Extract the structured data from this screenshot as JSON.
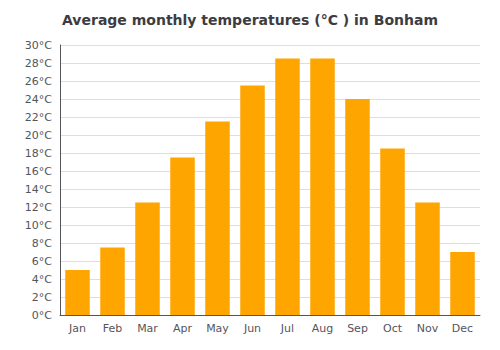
{
  "chart_data": {
    "type": "bar",
    "title": "Average monthly temperatures (°C ) in Bonham",
    "categories": [
      "Jan",
      "Feb",
      "Mar",
      "Apr",
      "May",
      "Jun",
      "Jul",
      "Aug",
      "Sep",
      "Oct",
      "Nov",
      "Dec"
    ],
    "values": [
      5,
      7.5,
      12.5,
      17.5,
      21.5,
      25.5,
      28.5,
      28.5,
      24,
      18.5,
      12.5,
      7
    ],
    "color": "#FFA500",
    "ylim": [
      0,
      30
    ],
    "yticks": [
      {
        "value": 0,
        "label": "0°C"
      },
      {
        "value": 2,
        "label": "2°C"
      },
      {
        "value": 4,
        "label": "4°C"
      },
      {
        "value": 6,
        "label": "6°C"
      },
      {
        "value": 8,
        "label": "8°C"
      },
      {
        "value": 10,
        "label": "10°C"
      },
      {
        "value": 12,
        "label": "12°C"
      },
      {
        "value": 14,
        "label": "14°C"
      },
      {
        "value": 16,
        "label": "16°C"
      },
      {
        "value": 18,
        "label": "18°C"
      },
      {
        "value": 20,
        "label": "20°C"
      },
      {
        "value": 22,
        "label": "22°C"
      },
      {
        "value": 24,
        "label": "24°C"
      },
      {
        "value": 26,
        "label": "26°C"
      },
      {
        "value": 28,
        "label": "28°C"
      },
      {
        "value": 30,
        "label": "30°C"
      }
    ],
    "grid": true
  }
}
